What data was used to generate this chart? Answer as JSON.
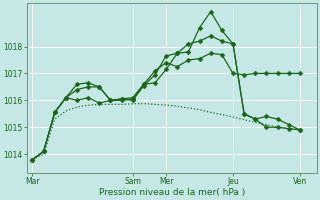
{
  "background_color": "#c5e8e6",
  "grid_color": "#ffffff",
  "line_color": "#1a6618",
  "xlabel": "Pression niveau de la mer( hPa )",
  "xlabel_color": "#1a6618",
  "yticks": [
    1014,
    1015,
    1016,
    1017,
    1018
  ],
  "ylim": [
    1013.3,
    1019.6
  ],
  "xtick_labels": [
    "Mar",
    "Sam",
    "Mer",
    "Jeu",
    "Ven"
  ],
  "xtick_positions": [
    0,
    9,
    12,
    18,
    24
  ],
  "xlim": [
    -0.5,
    25.5
  ],
  "line1_x": [
    0,
    1,
    2,
    3,
    4,
    5,
    6,
    7,
    8,
    9,
    10,
    11,
    12,
    13,
    14,
    15,
    16,
    17,
    18,
    19,
    20,
    21,
    22,
    23,
    24
  ],
  "line1_y": [
    1013.8,
    1014.1,
    1015.55,
    1016.1,
    1016.6,
    1016.65,
    1016.5,
    1016.0,
    1016.0,
    1016.05,
    1016.6,
    1017.1,
    1017.4,
    1017.25,
    1017.5,
    1017.55,
    1017.75,
    1017.7,
    1017.0,
    1016.95,
    1017.0,
    1017.0,
    1017.0,
    1017.0,
    1017.0
  ],
  "line2_x": [
    0,
    1,
    2,
    3,
    4,
    5,
    6,
    7,
    8,
    9,
    10,
    11,
    12,
    13,
    14,
    15,
    16,
    17,
    18,
    19,
    20,
    21,
    22,
    23,
    24
  ],
  "line2_y": [
    1013.8,
    1014.1,
    1015.55,
    1016.1,
    1016.4,
    1016.5,
    1016.5,
    1016.0,
    1016.05,
    1016.1,
    1016.6,
    1016.65,
    1017.15,
    1017.75,
    1017.8,
    1018.7,
    1019.3,
    1018.6,
    1018.1,
    1015.5,
    1015.3,
    1015.4,
    1015.3,
    1015.1,
    1014.9
  ],
  "line3_x": [
    0,
    1,
    2,
    3,
    4,
    5,
    6,
    7,
    8,
    9,
    10,
    11,
    12,
    13,
    14,
    15,
    16,
    17,
    18,
    19,
    20,
    21,
    22,
    23,
    24
  ],
  "line3_y": [
    1013.8,
    1014.1,
    1015.55,
    1016.1,
    1016.0,
    1016.1,
    1015.9,
    1016.0,
    1016.05,
    1016.0,
    1016.55,
    1016.95,
    1017.65,
    1017.75,
    1018.1,
    1018.2,
    1018.4,
    1018.2,
    1018.1,
    1015.5,
    1015.3,
    1015.0,
    1015.0,
    1014.95,
    1014.9
  ],
  "line4_x": [
    0,
    1,
    2,
    3,
    4,
    5,
    6,
    7,
    8,
    9,
    10,
    11,
    12,
    13,
    14,
    15,
    16,
    17,
    18,
    19,
    20,
    21,
    22,
    23,
    24
  ],
  "line4_y": [
    1013.8,
    1014.0,
    1015.3,
    1015.6,
    1015.75,
    1015.82,
    1015.85,
    1015.85,
    1015.85,
    1015.87,
    1015.88,
    1015.85,
    1015.82,
    1015.78,
    1015.72,
    1015.65,
    1015.55,
    1015.47,
    1015.38,
    1015.28,
    1015.18,
    1015.1,
    1015.0,
    1014.95,
    1014.9
  ],
  "marker": "D",
  "markersize": 2.5,
  "linewidth": 0.9
}
